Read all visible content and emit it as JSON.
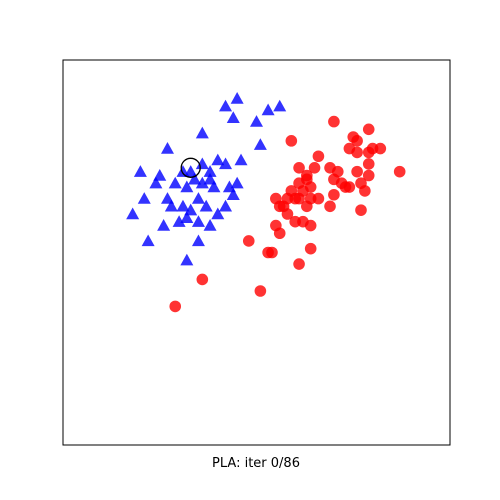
{
  "chart_data": {
    "type": "scatter",
    "title": "",
    "caption": "PLA: iter 0/86",
    "xlabel": "",
    "ylabel": "",
    "xlim": [
      0,
      1
    ],
    "ylim": [
      0,
      1
    ],
    "grid": false,
    "ticks": false,
    "series": [
      {
        "marker": "triangle",
        "color": "#0000ff",
        "points": [
          [
            0.45,
            0.9
          ],
          [
            0.42,
            0.88
          ],
          [
            0.53,
            0.87
          ],
          [
            0.56,
            0.88
          ],
          [
            0.44,
            0.85
          ],
          [
            0.5,
            0.84
          ],
          [
            0.36,
            0.81
          ],
          [
            0.27,
            0.77
          ],
          [
            0.51,
            0.78
          ],
          [
            0.46,
            0.74
          ],
          [
            0.4,
            0.74
          ],
          [
            0.42,
            0.73
          ],
          [
            0.36,
            0.73
          ],
          [
            0.33,
            0.71
          ],
          [
            0.2,
            0.71
          ],
          [
            0.25,
            0.7
          ],
          [
            0.31,
            0.71
          ],
          [
            0.38,
            0.71
          ],
          [
            0.34,
            0.69
          ],
          [
            0.38,
            0.69
          ],
          [
            0.24,
            0.68
          ],
          [
            0.29,
            0.68
          ],
          [
            0.36,
            0.68
          ],
          [
            0.45,
            0.68
          ],
          [
            0.43,
            0.67
          ],
          [
            0.32,
            0.67
          ],
          [
            0.39,
            0.67
          ],
          [
            0.27,
            0.64
          ],
          [
            0.21,
            0.64
          ],
          [
            0.35,
            0.64
          ],
          [
            0.44,
            0.65
          ],
          [
            0.42,
            0.62
          ],
          [
            0.31,
            0.62
          ],
          [
            0.37,
            0.62
          ],
          [
            0.28,
            0.62
          ],
          [
            0.33,
            0.61
          ],
          [
            0.18,
            0.6
          ],
          [
            0.32,
            0.59
          ],
          [
            0.4,
            0.6
          ],
          [
            0.35,
            0.58
          ],
          [
            0.3,
            0.58
          ],
          [
            0.26,
            0.57
          ],
          [
            0.38,
            0.57
          ],
          [
            0.22,
            0.53
          ],
          [
            0.35,
            0.53
          ],
          [
            0.32,
            0.48
          ]
        ]
      },
      {
        "marker": "circle",
        "color": "#ff0000",
        "points": [
          [
            0.7,
            0.84
          ],
          [
            0.75,
            0.8
          ],
          [
            0.79,
            0.82
          ],
          [
            0.76,
            0.79
          ],
          [
            0.74,
            0.77
          ],
          [
            0.8,
            0.77
          ],
          [
            0.59,
            0.79
          ],
          [
            0.66,
            0.75
          ],
          [
            0.76,
            0.76
          ],
          [
            0.79,
            0.76
          ],
          [
            0.82,
            0.77
          ],
          [
            0.69,
            0.72
          ],
          [
            0.79,
            0.73
          ],
          [
            0.65,
            0.72
          ],
          [
            0.61,
            0.72
          ],
          [
            0.71,
            0.71
          ],
          [
            0.87,
            0.71
          ],
          [
            0.76,
            0.71
          ],
          [
            0.79,
            0.7
          ],
          [
            0.63,
            0.7
          ],
          [
            0.77,
            0.68
          ],
          [
            0.63,
            0.69
          ],
          [
            0.7,
            0.69
          ],
          [
            0.61,
            0.68
          ],
          [
            0.64,
            0.67
          ],
          [
            0.72,
            0.68
          ],
          [
            0.73,
            0.67
          ],
          [
            0.74,
            0.67
          ],
          [
            0.59,
            0.66
          ],
          [
            0.62,
            0.66
          ],
          [
            0.78,
            0.66
          ],
          [
            0.6,
            0.64
          ],
          [
            0.61,
            0.64
          ],
          [
            0.58,
            0.64
          ],
          [
            0.64,
            0.64
          ],
          [
            0.7,
            0.65
          ],
          [
            0.66,
            0.64
          ],
          [
            0.56,
            0.62
          ],
          [
            0.55,
            0.64
          ],
          [
            0.57,
            0.62
          ],
          [
            0.63,
            0.62
          ],
          [
            0.69,
            0.62
          ],
          [
            0.77,
            0.61
          ],
          [
            0.58,
            0.6
          ],
          [
            0.6,
            0.58
          ],
          [
            0.62,
            0.58
          ],
          [
            0.64,
            0.57
          ],
          [
            0.55,
            0.57
          ],
          [
            0.56,
            0.55
          ],
          [
            0.48,
            0.53
          ],
          [
            0.64,
            0.51
          ],
          [
            0.54,
            0.5
          ],
          [
            0.53,
            0.5
          ],
          [
            0.61,
            0.47
          ],
          [
            0.36,
            0.43
          ],
          [
            0.51,
            0.4
          ],
          [
            0.29,
            0.36
          ]
        ]
      }
    ],
    "highlight": {
      "marker": "open-circle",
      "color": "#000000",
      "point": [
        0.33,
        0.72
      ]
    }
  }
}
